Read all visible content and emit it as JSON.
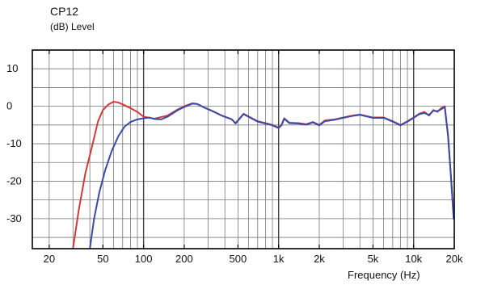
{
  "chart_data": {
    "type": "line",
    "title": "CP12",
    "ylabel": "(dB)  Level",
    "xlabel": "Frequency  (Hz)",
    "xscale": "log",
    "xlim": [
      15,
      20000
    ],
    "ylim": [
      -38,
      15
    ],
    "grid": true,
    "x_ticks": [
      {
        "value": 20,
        "label": "20"
      },
      {
        "value": 50,
        "label": "50"
      },
      {
        "value": 100,
        "label": "100"
      },
      {
        "value": 200,
        "label": "200"
      },
      {
        "value": 500,
        "label": "500"
      },
      {
        "value": 1000,
        "label": "1k"
      },
      {
        "value": 2000,
        "label": "2k"
      },
      {
        "value": 5000,
        "label": "5k"
      },
      {
        "value": 10000,
        "label": "10k"
      },
      {
        "value": 20000,
        "label": "20k"
      }
    ],
    "y_ticks": [
      {
        "value": 10,
        "label": "10"
      },
      {
        "value": 0,
        "label": "0"
      },
      {
        "value": -10,
        "label": "-10"
      },
      {
        "value": -20,
        "label": "-20"
      },
      {
        "value": -30,
        "label": "-30"
      }
    ],
    "series": [
      {
        "color": "#d23a3a",
        "x": [
          30,
          33,
          37,
          42,
          46,
          50,
          55,
          60,
          65,
          70,
          80,
          90,
          100,
          120,
          150,
          180,
          200,
          230,
          250,
          280,
          320,
          380,
          450,
          480,
          550,
          620,
          700,
          800,
          900,
          1000,
          1050,
          1100,
          1200,
          1400,
          1600,
          1800,
          2000,
          2200,
          2600,
          3000,
          3500,
          4000,
          5000,
          6000,
          7000,
          8000,
          9000,
          10000,
          11000,
          12000,
          13000,
          14000,
          15000,
          16000,
          17000,
          18000,
          19000,
          19800
        ],
        "y": [
          -38,
          -28,
          -18,
          -10,
          -4,
          -1,
          0.5,
          1.2,
          1.0,
          0.5,
          -0.5,
          -1.5,
          -2.8,
          -3.3,
          -2.5,
          -0.8,
          0,
          0.8,
          0.6,
          -0.3,
          -1.2,
          -2.5,
          -3.5,
          -4.5,
          -2.0,
          -3.0,
          -4.0,
          -4.5,
          -5.0,
          -5.7,
          -5.0,
          -3.2,
          -4.4,
          -4.5,
          -4.8,
          -4.2,
          -5.0,
          -3.8,
          -3.5,
          -3.0,
          -2.5,
          -2.2,
          -3.0,
          -3.0,
          -4.0,
          -5.0,
          -4.0,
          -3.0,
          -2.0,
          -1.5,
          -2.5,
          -1.0,
          -1.5,
          -0.5,
          0,
          -8,
          -20,
          -30
        ]
      },
      {
        "color": "#3a4aa8",
        "x": [
          40,
          43,
          47,
          52,
          58,
          65,
          72,
          80,
          90,
          100,
          110,
          120,
          135,
          150,
          180,
          200,
          230,
          250,
          280,
          320,
          380,
          450,
          480,
          550,
          620,
          700,
          800,
          900,
          1000,
          1050,
          1100,
          1200,
          1400,
          1600,
          1800,
          2000,
          2200,
          2600,
          3000,
          3500,
          4000,
          5000,
          6000,
          7000,
          8000,
          9000,
          10000,
          11000,
          12000,
          13000,
          14000,
          15000,
          16000,
          17000,
          18000,
          19000,
          19800
        ],
        "y": [
          -38,
          -30,
          -23,
          -17,
          -12,
          -8,
          -5.5,
          -4.2,
          -3.5,
          -3.2,
          -3.0,
          -3.4,
          -3.5,
          -2.8,
          -1.0,
          -0.2,
          0.7,
          0.6,
          -0.3,
          -1.2,
          -2.5,
          -3.5,
          -4.6,
          -2.1,
          -3.1,
          -4.1,
          -4.6,
          -5.1,
          -5.8,
          -5.1,
          -3.3,
          -4.5,
          -4.6,
          -4.9,
          -4.3,
          -5.1,
          -4.0,
          -3.6,
          -3.1,
          -2.6,
          -2.3,
          -3.1,
          -3.1,
          -4.1,
          -5.1,
          -4.1,
          -3.1,
          -2.1,
          -1.8,
          -2.3,
          -1.2,
          -1.3,
          -0.8,
          -0.2,
          -8,
          -20,
          -30
        ]
      }
    ]
  }
}
